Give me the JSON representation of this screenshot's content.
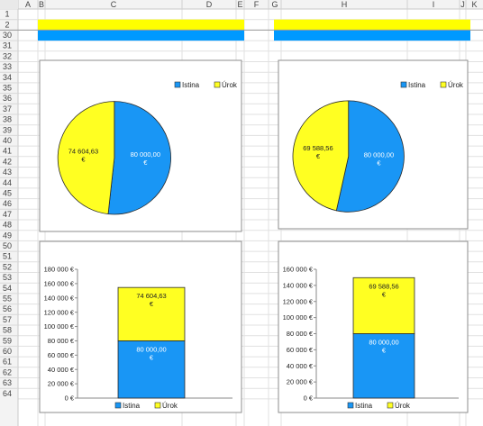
{
  "sheet": {
    "columns": [
      "A",
      "B",
      "C",
      "D",
      "E",
      "F",
      "G",
      "H",
      "I",
      "J",
      "K"
    ],
    "rows": [
      "1",
      "2",
      "30",
      "31",
      "32",
      "33",
      "34",
      "35",
      "36",
      "37",
      "38",
      "39",
      "40",
      "41",
      "42",
      "43",
      "44",
      "45",
      "46",
      "47",
      "48",
      "49",
      "50",
      "51",
      "52",
      "53",
      "54",
      "55",
      "56",
      "57",
      "58",
      "59",
      "60",
      "61",
      "62",
      "63",
      "64"
    ],
    "fill_colors": {
      "yellow": "#ffff00",
      "blue": "#0099ff"
    }
  },
  "chart_data": [
    {
      "type": "pie",
      "slices": [
        {
          "label": "Istina",
          "value": 80000,
          "data_label": "80 000,00 €",
          "color": "#1996f5"
        },
        {
          "label": "Úrok",
          "value": 74604.63,
          "data_label": "74 604,63 €",
          "color": "#ffff22"
        }
      ],
      "legend": [
        "Istina",
        "Úrok"
      ],
      "legend_position": "top-right"
    },
    {
      "type": "pie",
      "slices": [
        {
          "label": "Istina",
          "value": 80000,
          "data_label": "80 000,00 €",
          "color": "#1996f5"
        },
        {
          "label": "Úrok",
          "value": 69588.56,
          "data_label": "69 588,56 €",
          "color": "#ffff22"
        }
      ],
      "legend": [
        "Istina",
        "Úrok"
      ],
      "legend_position": "top-right"
    },
    {
      "type": "bar",
      "stacked": true,
      "categories": [
        ""
      ],
      "series": [
        {
          "name": "Istina",
          "values": [
            80000
          ],
          "data_label": "80 000,00 €",
          "color": "#1996f5"
        },
        {
          "name": "Úrok",
          "values": [
            74604.63
          ],
          "data_label": "74 604,63 €",
          "color": "#ffff22"
        }
      ],
      "ylim": [
        0,
        180000
      ],
      "yticks": [
        0,
        20000,
        40000,
        60000,
        80000,
        100000,
        120000,
        140000,
        160000,
        180000
      ],
      "ytick_labels": [
        "0 €",
        "20 000 €",
        "40 000 €",
        "60 000 €",
        "80 000 €",
        "100 000 €",
        "120 000 €",
        "140 000 €",
        "160 000 €",
        "180 000 €"
      ],
      "grid": false,
      "legend": [
        "Istina",
        "Úrok"
      ],
      "legend_position": "bottom"
    },
    {
      "type": "bar",
      "stacked": true,
      "categories": [
        ""
      ],
      "series": [
        {
          "name": "Istina",
          "values": [
            80000
          ],
          "data_label": "80 000,00 €",
          "color": "#1996f5"
        },
        {
          "name": "Úrok",
          "values": [
            69588.56
          ],
          "data_label": "69 588,56 €",
          "color": "#ffff22"
        }
      ],
      "ylim": [
        0,
        160000
      ],
      "yticks": [
        0,
        20000,
        40000,
        60000,
        80000,
        100000,
        120000,
        140000,
        160000
      ],
      "ytick_labels": [
        "0 €",
        "20 000 €",
        "40 000 €",
        "60 000 €",
        "80 000 €",
        "100 000 €",
        "120 000 €",
        "140 000 €",
        "160 000 €"
      ],
      "grid": false,
      "legend": [
        "Istina",
        "Úrok"
      ],
      "legend_position": "bottom"
    }
  ]
}
